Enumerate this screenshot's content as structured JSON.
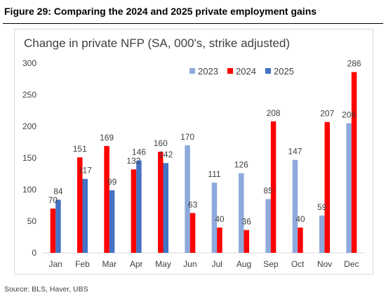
{
  "figure_title": "Figure 29: Comparing the 2024 and 2025 private employment gains",
  "source": "Source: BLS, Haver, UBS",
  "chart_data": {
    "type": "bar",
    "title": "Change in private NFP (SA, 000's, strike adjusted)",
    "xlabel": "",
    "ylabel": "",
    "ylim": [
      0,
      300
    ],
    "yticks": [
      0,
      50,
      100,
      150,
      200,
      250,
      300
    ],
    "grid": false,
    "legend_position": "top-right",
    "categories": [
      "Jan",
      "Feb",
      "Mar",
      "Apr",
      "May",
      "Jun",
      "Jul",
      "Aug",
      "Sep",
      "Oct",
      "Nov",
      "Dec"
    ],
    "series": [
      {
        "name": "2023",
        "color": "#8EA9DB",
        "values": [
          null,
          null,
          null,
          null,
          null,
          170,
          111,
          126,
          85,
          147,
          59,
          205
        ]
      },
      {
        "name": "2024",
        "color": "#FF0000",
        "values": [
          70,
          151,
          169,
          132,
          160,
          63,
          40,
          36,
          208,
          40,
          207,
          286
        ]
      },
      {
        "name": "2025",
        "color": "#4472C4",
        "values": [
          84,
          117,
          99,
          146,
          142,
          null,
          null,
          null,
          null,
          null,
          null,
          null
        ]
      }
    ]
  }
}
